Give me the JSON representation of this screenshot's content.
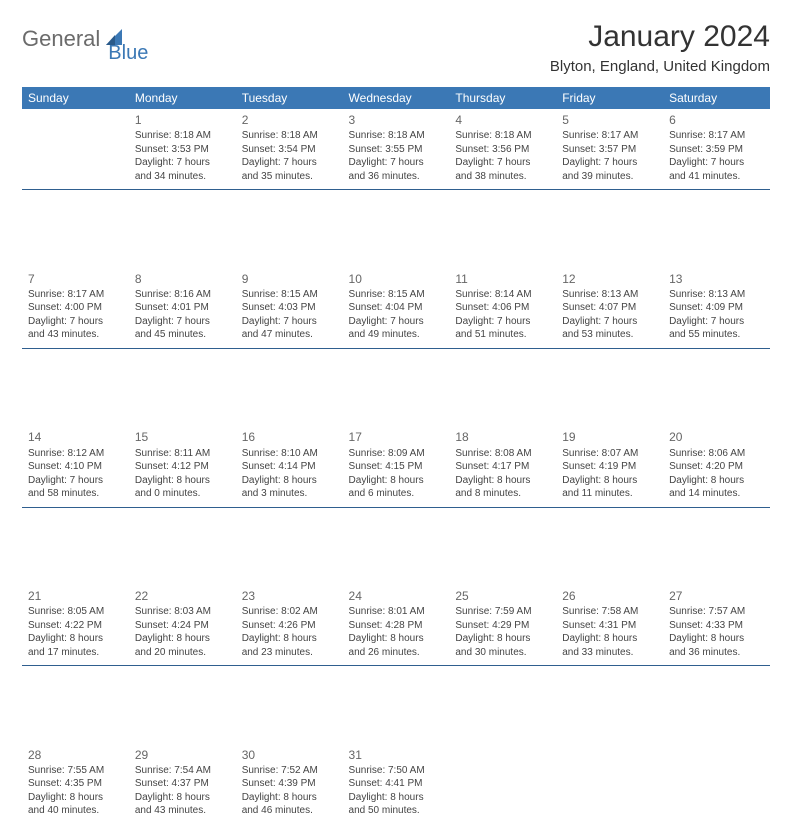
{
  "logo": {
    "part1": "General",
    "part2": "Blue"
  },
  "title": "January 2024",
  "location": "Blyton, England, United Kingdom",
  "colors": {
    "header_bg": "#3b78b5",
    "header_text": "#ffffff",
    "rule": "#2f5f8f",
    "logo_gray": "#6b6b6b",
    "logo_blue": "#3b78b5"
  },
  "weekdays": [
    "Sunday",
    "Monday",
    "Tuesday",
    "Wednesday",
    "Thursday",
    "Friday",
    "Saturday"
  ],
  "weeks": [
    [
      null,
      {
        "d": "1",
        "sr": "Sunrise: 8:18 AM",
        "ss": "Sunset: 3:53 PM",
        "dl1": "Daylight: 7 hours",
        "dl2": "and 34 minutes."
      },
      {
        "d": "2",
        "sr": "Sunrise: 8:18 AM",
        "ss": "Sunset: 3:54 PM",
        "dl1": "Daylight: 7 hours",
        "dl2": "and 35 minutes."
      },
      {
        "d": "3",
        "sr": "Sunrise: 8:18 AM",
        "ss": "Sunset: 3:55 PM",
        "dl1": "Daylight: 7 hours",
        "dl2": "and 36 minutes."
      },
      {
        "d": "4",
        "sr": "Sunrise: 8:18 AM",
        "ss": "Sunset: 3:56 PM",
        "dl1": "Daylight: 7 hours",
        "dl2": "and 38 minutes."
      },
      {
        "d": "5",
        "sr": "Sunrise: 8:17 AM",
        "ss": "Sunset: 3:57 PM",
        "dl1": "Daylight: 7 hours",
        "dl2": "and 39 minutes."
      },
      {
        "d": "6",
        "sr": "Sunrise: 8:17 AM",
        "ss": "Sunset: 3:59 PM",
        "dl1": "Daylight: 7 hours",
        "dl2": "and 41 minutes."
      }
    ],
    [
      {
        "d": "7",
        "sr": "Sunrise: 8:17 AM",
        "ss": "Sunset: 4:00 PM",
        "dl1": "Daylight: 7 hours",
        "dl2": "and 43 minutes."
      },
      {
        "d": "8",
        "sr": "Sunrise: 8:16 AM",
        "ss": "Sunset: 4:01 PM",
        "dl1": "Daylight: 7 hours",
        "dl2": "and 45 minutes."
      },
      {
        "d": "9",
        "sr": "Sunrise: 8:15 AM",
        "ss": "Sunset: 4:03 PM",
        "dl1": "Daylight: 7 hours",
        "dl2": "and 47 minutes."
      },
      {
        "d": "10",
        "sr": "Sunrise: 8:15 AM",
        "ss": "Sunset: 4:04 PM",
        "dl1": "Daylight: 7 hours",
        "dl2": "and 49 minutes."
      },
      {
        "d": "11",
        "sr": "Sunrise: 8:14 AM",
        "ss": "Sunset: 4:06 PM",
        "dl1": "Daylight: 7 hours",
        "dl2": "and 51 minutes."
      },
      {
        "d": "12",
        "sr": "Sunrise: 8:13 AM",
        "ss": "Sunset: 4:07 PM",
        "dl1": "Daylight: 7 hours",
        "dl2": "and 53 minutes."
      },
      {
        "d": "13",
        "sr": "Sunrise: 8:13 AM",
        "ss": "Sunset: 4:09 PM",
        "dl1": "Daylight: 7 hours",
        "dl2": "and 55 minutes."
      }
    ],
    [
      {
        "d": "14",
        "sr": "Sunrise: 8:12 AM",
        "ss": "Sunset: 4:10 PM",
        "dl1": "Daylight: 7 hours",
        "dl2": "and 58 minutes."
      },
      {
        "d": "15",
        "sr": "Sunrise: 8:11 AM",
        "ss": "Sunset: 4:12 PM",
        "dl1": "Daylight: 8 hours",
        "dl2": "and 0 minutes."
      },
      {
        "d": "16",
        "sr": "Sunrise: 8:10 AM",
        "ss": "Sunset: 4:14 PM",
        "dl1": "Daylight: 8 hours",
        "dl2": "and 3 minutes."
      },
      {
        "d": "17",
        "sr": "Sunrise: 8:09 AM",
        "ss": "Sunset: 4:15 PM",
        "dl1": "Daylight: 8 hours",
        "dl2": "and 6 minutes."
      },
      {
        "d": "18",
        "sr": "Sunrise: 8:08 AM",
        "ss": "Sunset: 4:17 PM",
        "dl1": "Daylight: 8 hours",
        "dl2": "and 8 minutes."
      },
      {
        "d": "19",
        "sr": "Sunrise: 8:07 AM",
        "ss": "Sunset: 4:19 PM",
        "dl1": "Daylight: 8 hours",
        "dl2": "and 11 minutes."
      },
      {
        "d": "20",
        "sr": "Sunrise: 8:06 AM",
        "ss": "Sunset: 4:20 PM",
        "dl1": "Daylight: 8 hours",
        "dl2": "and 14 minutes."
      }
    ],
    [
      {
        "d": "21",
        "sr": "Sunrise: 8:05 AM",
        "ss": "Sunset: 4:22 PM",
        "dl1": "Daylight: 8 hours",
        "dl2": "and 17 minutes."
      },
      {
        "d": "22",
        "sr": "Sunrise: 8:03 AM",
        "ss": "Sunset: 4:24 PM",
        "dl1": "Daylight: 8 hours",
        "dl2": "and 20 minutes."
      },
      {
        "d": "23",
        "sr": "Sunrise: 8:02 AM",
        "ss": "Sunset: 4:26 PM",
        "dl1": "Daylight: 8 hours",
        "dl2": "and 23 minutes."
      },
      {
        "d": "24",
        "sr": "Sunrise: 8:01 AM",
        "ss": "Sunset: 4:28 PM",
        "dl1": "Daylight: 8 hours",
        "dl2": "and 26 minutes."
      },
      {
        "d": "25",
        "sr": "Sunrise: 7:59 AM",
        "ss": "Sunset: 4:29 PM",
        "dl1": "Daylight: 8 hours",
        "dl2": "and 30 minutes."
      },
      {
        "d": "26",
        "sr": "Sunrise: 7:58 AM",
        "ss": "Sunset: 4:31 PM",
        "dl1": "Daylight: 8 hours",
        "dl2": "and 33 minutes."
      },
      {
        "d": "27",
        "sr": "Sunrise: 7:57 AM",
        "ss": "Sunset: 4:33 PM",
        "dl1": "Daylight: 8 hours",
        "dl2": "and 36 minutes."
      }
    ],
    [
      {
        "d": "28",
        "sr": "Sunrise: 7:55 AM",
        "ss": "Sunset: 4:35 PM",
        "dl1": "Daylight: 8 hours",
        "dl2": "and 40 minutes."
      },
      {
        "d": "29",
        "sr": "Sunrise: 7:54 AM",
        "ss": "Sunset: 4:37 PM",
        "dl1": "Daylight: 8 hours",
        "dl2": "and 43 minutes."
      },
      {
        "d": "30",
        "sr": "Sunrise: 7:52 AM",
        "ss": "Sunset: 4:39 PM",
        "dl1": "Daylight: 8 hours",
        "dl2": "and 46 minutes."
      },
      {
        "d": "31",
        "sr": "Sunrise: 7:50 AM",
        "ss": "Sunset: 4:41 PM",
        "dl1": "Daylight: 8 hours",
        "dl2": "and 50 minutes."
      },
      null,
      null,
      null
    ]
  ]
}
